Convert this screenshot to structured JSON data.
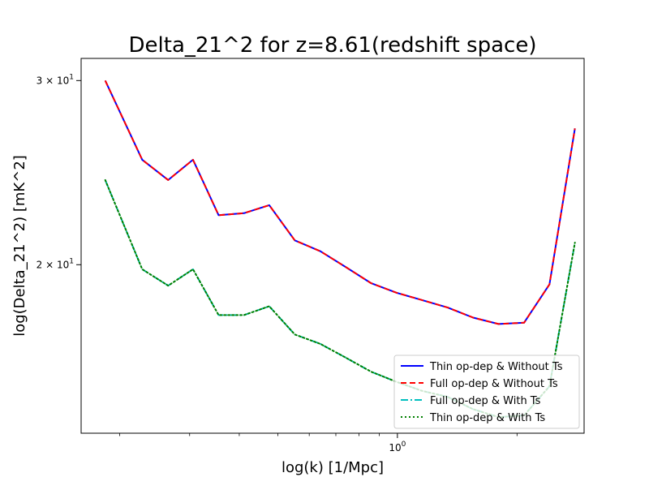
{
  "chart_data": {
    "type": "line",
    "title": "Delta_21^2 for z=8.61(redshift space)",
    "xlabel": "log(k) [1/Mpc]",
    "ylabel": "log(Delta_21^2) [mK^2]",
    "x_scale": "log",
    "y_scale": "log",
    "xlim": [
      0.16,
      2.95
    ],
    "ylim": [
      13.8,
      31.5
    ],
    "x_ticks": [
      {
        "value": 1.0,
        "label": "10^0"
      }
    ],
    "x_minor_ticks": [
      0.2,
      0.3,
      0.4,
      0.5,
      0.6,
      0.7,
      0.8,
      0.9,
      2.0
    ],
    "y_ticks": [
      {
        "value": 20,
        "label": "2 × 10^1"
      },
      {
        "value": 30,
        "label": "3 × 10^1"
      }
    ],
    "y_minor_ticks": [],
    "grid": false,
    "legend_position": "lower-right",
    "x": [
      0.184,
      0.228,
      0.265,
      0.306,
      0.355,
      0.411,
      0.476,
      0.552,
      0.64,
      0.741,
      0.859,
      0.996,
      1.154,
      1.338,
      1.551,
      1.797,
      2.083,
      2.414,
      2.798
    ],
    "series": [
      {
        "name": "Thin op-dep & Without Ts",
        "color": "#0000ff",
        "style": "solid",
        "values": [
          30.0,
          25.2,
          24.1,
          25.2,
          22.3,
          22.4,
          22.8,
          21.1,
          20.6,
          19.9,
          19.2,
          18.8,
          18.5,
          18.2,
          17.8,
          17.55,
          17.6,
          19.15,
          27.0
        ]
      },
      {
        "name": "Full op-dep & Without Ts",
        "color": "#ff0000",
        "style": "dashed",
        "values": [
          30.0,
          25.2,
          24.1,
          25.2,
          22.3,
          22.4,
          22.8,
          21.1,
          20.6,
          19.9,
          19.2,
          18.8,
          18.5,
          18.2,
          17.8,
          17.55,
          17.6,
          19.15,
          27.0
        ]
      },
      {
        "name": "Full op-dep & With Ts",
        "color": "#00bfbf",
        "style": "dashdot",
        "values": [
          24.1,
          19.8,
          19.1,
          19.8,
          17.9,
          17.9,
          18.25,
          17.15,
          16.8,
          16.3,
          15.8,
          15.45,
          15.15,
          14.95,
          14.55,
          14.3,
          14.35,
          15.3,
          21.0
        ]
      },
      {
        "name": "Thin op-dep & With Ts",
        "color": "#008000",
        "style": "dotted",
        "values": [
          24.1,
          19.8,
          19.1,
          19.8,
          17.9,
          17.9,
          18.25,
          17.15,
          16.8,
          16.3,
          15.8,
          15.45,
          15.15,
          14.95,
          14.55,
          14.3,
          14.35,
          15.3,
          21.0
        ]
      }
    ]
  }
}
